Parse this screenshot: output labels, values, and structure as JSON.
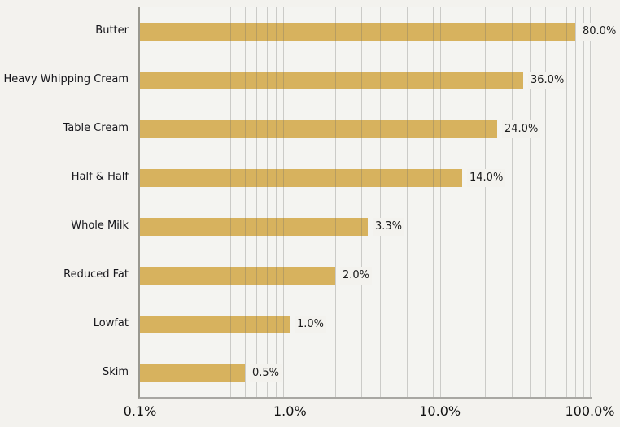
{
  "chart_data": {
    "type": "bar",
    "orientation": "horizontal",
    "title": "",
    "xlabel": "",
    "ylabel": "",
    "categories": [
      "Butter",
      "Heavy Whipping Cream",
      "Table Cream",
      "Half & Half",
      "Whole Milk",
      "Reduced Fat",
      "Lowfat",
      "Skim"
    ],
    "values": [
      80.0,
      36.0,
      24.0,
      14.0,
      3.3,
      2.0,
      1.0,
      0.5
    ],
    "value_labels": [
      "80.0%",
      "36.0%",
      "24.0%",
      "14.0%",
      "3.3%",
      "2.0%",
      "1.0%",
      "0.5%"
    ],
    "x_scale": "log",
    "xlim": [
      0.1,
      100
    ],
    "x_ticks": [
      {
        "value": 0.1,
        "label": "0.1%"
      },
      {
        "value": 1,
        "label": "1.0%"
      },
      {
        "value": 10,
        "label": "10.0%"
      },
      {
        "value": 100,
        "label": "100.0%"
      }
    ],
    "grid": "minor-log-vertical",
    "legend": "none"
  },
  "colors": {
    "background": "#f3f2ee",
    "plot_background": "#f4f4f1",
    "bar": "#d7b25e",
    "gridline": "rgba(110,110,105,0.30)",
    "axis_line": "#a8a7a3",
    "text": "#1b1b1b"
  }
}
